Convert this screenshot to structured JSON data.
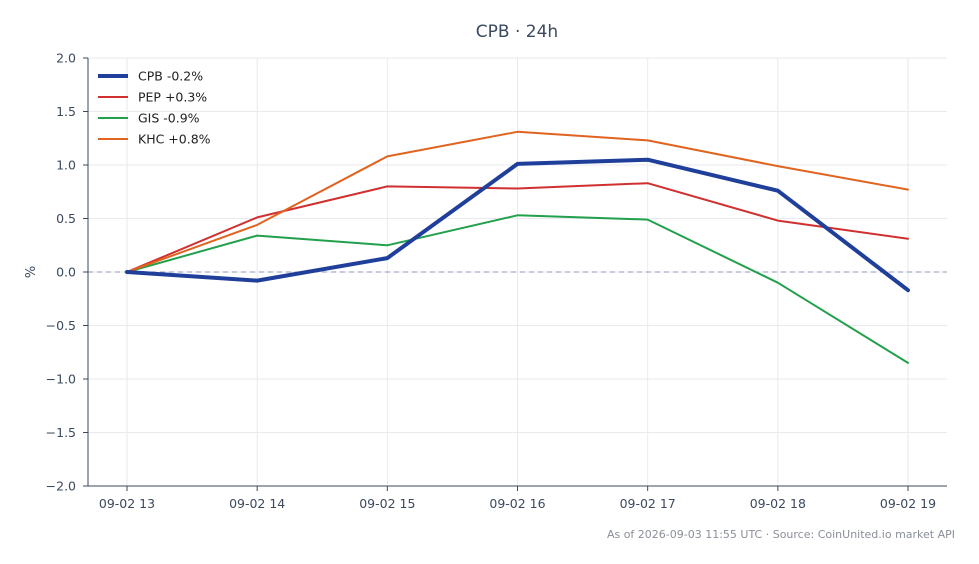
{
  "chart_data": {
    "type": "line",
    "title": "CPB · 24h",
    "xlabel": "",
    "ylabel": "%",
    "categories": [
      "09-02 13",
      "09-02 14",
      "09-02 15",
      "09-02 16",
      "09-02 17",
      "09-02 18",
      "09-02 19"
    ],
    "ylim": [
      -2.0,
      2.0
    ],
    "yticks": [
      2.0,
      1.5,
      1.0,
      0.5,
      0.0,
      -0.5,
      -1.0,
      -1.5,
      -2.0
    ],
    "ytick_labels": [
      "2.0",
      "1.5",
      "1.0",
      "0.5",
      "0.0",
      "−0.5",
      "−1.0",
      "−1.5",
      "−2.0"
    ],
    "grid": true,
    "legend_position": "top-left",
    "reference_line": 0.0,
    "series": [
      {
        "name": "CPB -0.2%",
        "color": "#1f3f9a",
        "emphasis": true,
        "values": [
          0.0,
          -0.08,
          0.13,
          1.01,
          1.05,
          0.76,
          -0.17
        ]
      },
      {
        "name": "PEP +0.3%",
        "color": "#d03030",
        "emphasis": false,
        "values": [
          0.0,
          0.51,
          0.8,
          0.78,
          0.83,
          0.48,
          0.31
        ]
      },
      {
        "name": "GIS -0.9%",
        "color": "#22a04b",
        "emphasis": false,
        "values": [
          0.0,
          0.34,
          0.25,
          0.53,
          0.49,
          -0.1,
          -0.85
        ]
      },
      {
        "name": "KHC +0.8%",
        "color": "#e0641f",
        "emphasis": false,
        "values": [
          0.0,
          0.44,
          1.08,
          1.31,
          1.23,
          0.99,
          0.77
        ]
      }
    ],
    "source_note": "As of 2026-09-03 11:55 UTC · Source: CoinUnited.io market API"
  }
}
